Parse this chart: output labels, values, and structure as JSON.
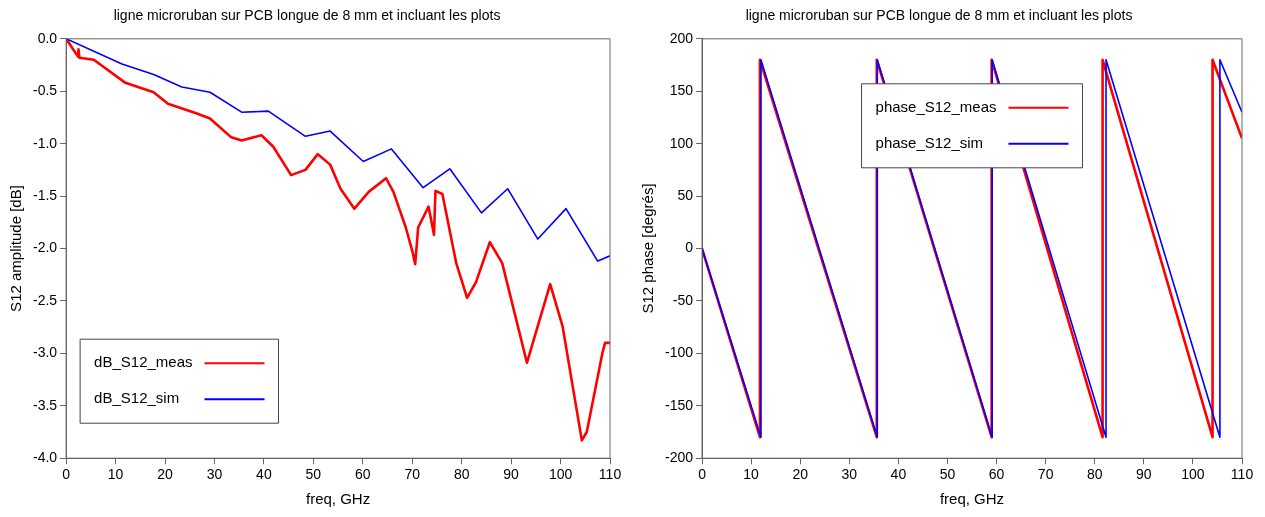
{
  "chart_data": [
    {
      "type": "line",
      "title": "ligne microruban sur PCB longue de 8 mm et incluant les plots",
      "xlabel": "freq, GHz",
      "ylabel": "S12 amplitude [dB]",
      "xlim": [
        0,
        110
      ],
      "xticks": [
        0,
        10,
        20,
        30,
        40,
        50,
        60,
        70,
        80,
        90,
        100,
        110
      ],
      "ylim": [
        -4,
        0
      ],
      "yticks": [
        {
          "value": -4,
          "label": "-4.0"
        },
        -3.5,
        {
          "value": -3,
          "label": "-3.0"
        },
        -2.5,
        {
          "value": -2,
          "label": "-2.0"
        },
        -1.5,
        {
          "value": -1,
          "label": "-1.0"
        },
        -0.5,
        {
          "value": 0,
          "label": "0.0"
        }
      ],
      "grid": false,
      "legend": "bottom left",
      "marker": "none",
      "line_style": "solid",
      "series": [
        {
          "name": "dB_S12_meas",
          "color": "#ff0000",
          "x": [
            0,
            2.4,
            2.5,
            2.7,
            5.6,
            12,
            17.7,
            20.6,
            26.3,
            29.1,
            33.4,
            35.5,
            39.5,
            41.9,
            45.5,
            48.4,
            50.9,
            53.4,
            55.5,
            58.3,
            61.2,
            64.7,
            66.2,
            68.7,
            70.1,
            70.6,
            71.2,
            73.3,
            74.4,
            74.7,
            76.1,
            78.9,
            81.1,
            82.9,
            85.7,
            88.2,
            93.2,
            97.9,
            100.4,
            104.3,
            105.3,
            108.5,
            109,
            110
          ],
          "values": [
            0,
            -0.17,
            -0.1,
            -0.18,
            -0.2,
            -0.42,
            -0.51,
            -0.62,
            -0.71,
            -0.76,
            -0.94,
            -0.97,
            -0.92,
            -1.03,
            -1.3,
            -1.25,
            -1.1,
            -1.2,
            -1.43,
            -1.62,
            -1.46,
            -1.33,
            -1.46,
            -1.8,
            -2.04,
            -2.15,
            -1.8,
            -1.6,
            -1.87,
            -1.45,
            -1.48,
            -2.14,
            -2.47,
            -2.32,
            -1.94,
            -2.14,
            -3.09,
            -2.34,
            -2.74,
            -3.83,
            -3.75,
            -2.99,
            -2.9,
            -2.9
          ]
        },
        {
          "name": "dB_S12_sim",
          "color": "#0000ff",
          "x": [
            0,
            11.3,
            17.7,
            23.4,
            29.1,
            35.5,
            40.9,
            48.4,
            53.4,
            60.1,
            65.8,
            72.2,
            77.6,
            84,
            89.3,
            95.4,
            101.1,
            107.5,
            108.5,
            110
          ],
          "values": [
            0,
            -0.24,
            -0.34,
            -0.46,
            -0.51,
            -0.7,
            -0.69,
            -0.93,
            -0.88,
            -1.17,
            -1.05,
            -1.42,
            -1.24,
            -1.66,
            -1.43,
            -1.91,
            -1.62,
            -2.12,
            -2.1,
            -2.07
          ]
        }
      ]
    },
    {
      "type": "line",
      "title": "ligne microruban sur PCB longue de 8 mm et incluant les plots",
      "xlabel": "freq, GHz",
      "ylabel": "S12 phase [degrés]",
      "xlim": [
        0,
        110
      ],
      "xticks": [
        0,
        10,
        20,
        30,
        40,
        50,
        60,
        70,
        80,
        90,
        100,
        110
      ],
      "ylim": [
        -200,
        200
      ],
      "yticks": [
        -200,
        -150,
        -100,
        -50,
        0,
        50,
        100,
        150,
        200
      ],
      "grid": false,
      "legend": "top",
      "marker": "none",
      "line_style": "solid",
      "series": [
        {
          "name": "phase_S12_meas",
          "color": "#ff0000",
          "x": [
            0,
            11.8,
            11.8,
            35.6,
            35.6,
            59,
            59,
            81.6,
            81.6,
            104,
            104,
            110
          ],
          "values": [
            0,
            -180,
            180,
            -180,
            180,
            -180,
            180,
            -180,
            180,
            -180,
            180,
            105
          ]
        },
        {
          "name": "phase_S12_sim",
          "color": "#0000ff",
          "x": [
            0,
            12,
            12,
            35.7,
            35.7,
            59.1,
            59.1,
            82.3,
            82.3,
            105.5,
            105.5,
            110
          ],
          "values": [
            0,
            -180,
            180,
            -180,
            180,
            -180,
            180,
            -180,
            180,
            -180,
            180,
            130
          ]
        }
      ]
    }
  ]
}
